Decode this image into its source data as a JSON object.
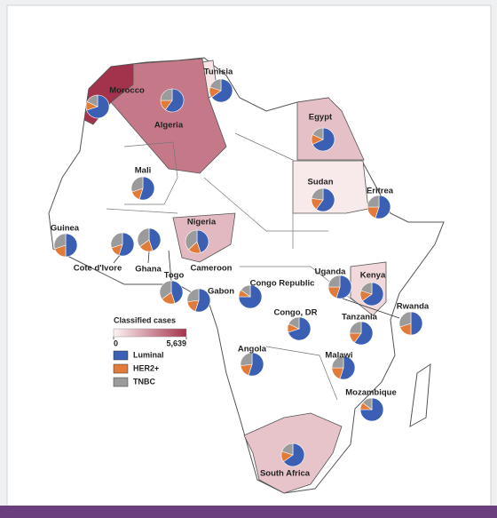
{
  "legend": {
    "title": "Classified cases",
    "scale": {
      "min": 0,
      "max": {
        "value": 5639,
        "label": "5,639"
      },
      "colors": [
        "#fdf3f3",
        "#a3334c"
      ]
    },
    "subtypes": [
      {
        "name": "Luminal",
        "color": "#3b5fb3"
      },
      {
        "name": "HER2+",
        "color": "#e07b39"
      },
      {
        "name": "TNBC",
        "color": "#9b9b9b"
      }
    ]
  },
  "countries": [
    {
      "name": "Tunisia",
      "shares": [
        65,
        15,
        20
      ],
      "cases": 450
    },
    {
      "name": "Morocco",
      "shares": [
        70,
        12,
        18
      ],
      "cases": 5639
    },
    {
      "name": "Algeria",
      "shares": [
        60,
        15,
        25
      ],
      "cases": 3600
    },
    {
      "name": "Egypt",
      "shares": [
        68,
        14,
        18
      ],
      "cases": 1500
    },
    {
      "name": "Mali",
      "shares": [
        55,
        15,
        30
      ]
    },
    {
      "name": "Sudan",
      "shares": [
        60,
        17,
        23
      ],
      "cases": 300
    },
    {
      "name": "Eritrea",
      "shares": [
        55,
        20,
        25
      ]
    },
    {
      "name": "Guinea",
      "shares": [
        50,
        20,
        30
      ]
    },
    {
      "name": "Cote d'Ivore",
      "shares": [
        55,
        15,
        30
      ]
    },
    {
      "name": "Ghana",
      "shares": [
        45,
        20,
        35
      ]
    },
    {
      "name": "Togo",
      "shares": [
        45,
        20,
        35
      ]
    },
    {
      "name": "Nigeria",
      "shares": [
        45,
        18,
        37
      ],
      "cases": 1700
    },
    {
      "name": "Cameroon",
      "shares": [
        55,
        18,
        27
      ]
    },
    {
      "name": "Gabon"
    },
    {
      "name": "Congo Republic",
      "shares": [
        75,
        10,
        15
      ]
    },
    {
      "name": "Congo, DR",
      "shares": [
        70,
        12,
        18
      ]
    },
    {
      "name": "Uganda",
      "shares": [
        55,
        20,
        25
      ]
    },
    {
      "name": "Kenya",
      "shares": [
        65,
        15,
        20
      ],
      "cases": 800
    },
    {
      "name": "Rwanda",
      "shares": [
        50,
        20,
        30
      ]
    },
    {
      "name": "Tanzania",
      "shares": [
        60,
        15,
        25
      ]
    },
    {
      "name": "Angola",
      "shares": [
        55,
        18,
        27
      ]
    },
    {
      "name": "Malawi",
      "shares": [
        55,
        20,
        25
      ]
    },
    {
      "name": "Mozambique",
      "shares": [
        75,
        10,
        15
      ]
    },
    {
      "name": "South Africa",
      "shares": [
        65,
        15,
        20
      ],
      "cases": 1400
    }
  ]
}
